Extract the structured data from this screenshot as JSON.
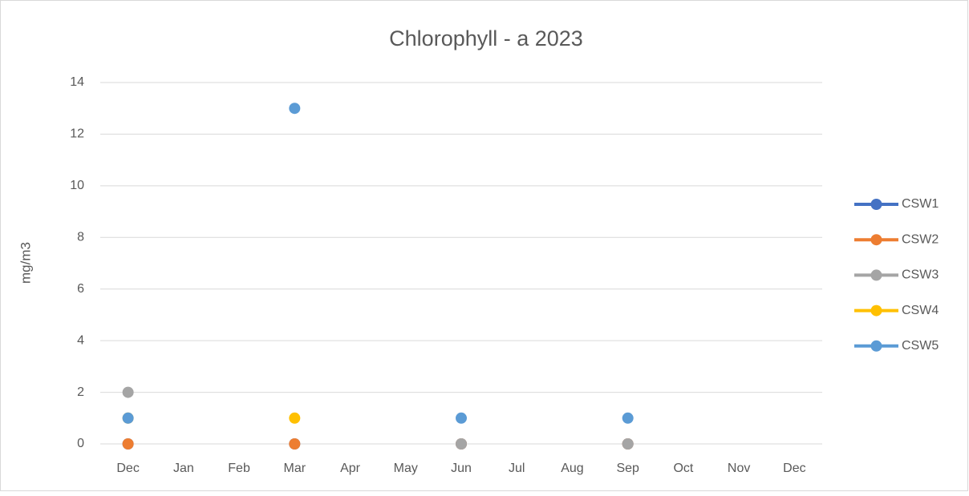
{
  "chart_data": {
    "type": "line",
    "title": "Chlorophyll - a 2023",
    "y_label": "mg/m3",
    "categories": [
      "Dec",
      "Jan",
      "Feb",
      "Mar",
      "Apr",
      "May",
      "Jun",
      "Jul",
      "Aug",
      "Sep",
      "Oct",
      "Nov",
      "Dec"
    ],
    "series": [
      {
        "name": "CSW1",
        "color": "#4472c4",
        "values": [
          0,
          null,
          null,
          0,
          null,
          null,
          0,
          null,
          null,
          0,
          null,
          null,
          null
        ]
      },
      {
        "name": "CSW2",
        "color": "#ed7d31",
        "values": [
          0,
          null,
          null,
          0,
          null,
          null,
          0,
          null,
          null,
          0,
          null,
          null,
          null
        ]
      },
      {
        "name": "CSW3",
        "color": "#a5a5a5",
        "values": [
          2,
          null,
          null,
          null,
          null,
          null,
          0,
          null,
          null,
          0,
          null,
          null,
          null
        ]
      },
      {
        "name": "CSW4",
        "color": "#ffc000",
        "values": [
          1,
          null,
          null,
          1,
          null,
          null,
          null,
          null,
          null,
          null,
          null,
          null,
          null
        ]
      },
      {
        "name": "CSW5",
        "color": "#5b9bd5",
        "values": [
          1,
          null,
          null,
          13,
          null,
          null,
          1,
          null,
          null,
          1,
          null,
          null,
          null
        ]
      }
    ],
    "ylim": [
      0,
      14
    ],
    "yticks": [
      0,
      2,
      4,
      6,
      8,
      10,
      12,
      14
    ],
    "grid": true,
    "legend": "right"
  }
}
